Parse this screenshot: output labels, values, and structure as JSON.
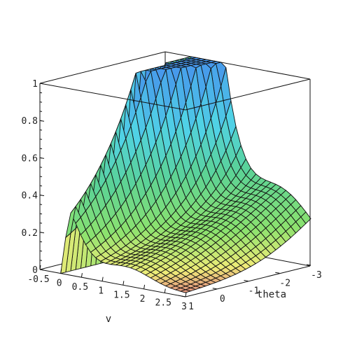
{
  "chart_data": {
    "type": "surface3d",
    "title": "",
    "axes": {
      "x": {
        "name": "v",
        "range": [
          -0.5,
          3
        ],
        "ticks": [
          "-0.5",
          "0",
          "0.5",
          "1",
          "1.5",
          "2",
          "2.5",
          "3"
        ]
      },
      "y": {
        "name": "theta",
        "range": [
          -3,
          1
        ],
        "ticks": [
          "-3",
          "-2",
          "-1",
          "0",
          "1"
        ]
      },
      "z": {
        "name": "",
        "range": [
          0,
          1
        ],
        "ticks": [
          "0",
          "0.2",
          "0.4",
          "0.6",
          "0.8",
          "1"
        ]
      }
    },
    "z_clipped_at": 1,
    "shading": "z-based colormap (red -> yellow -> green -> cyan -> blue)",
    "grid": false,
    "mesh_lines": true
  }
}
